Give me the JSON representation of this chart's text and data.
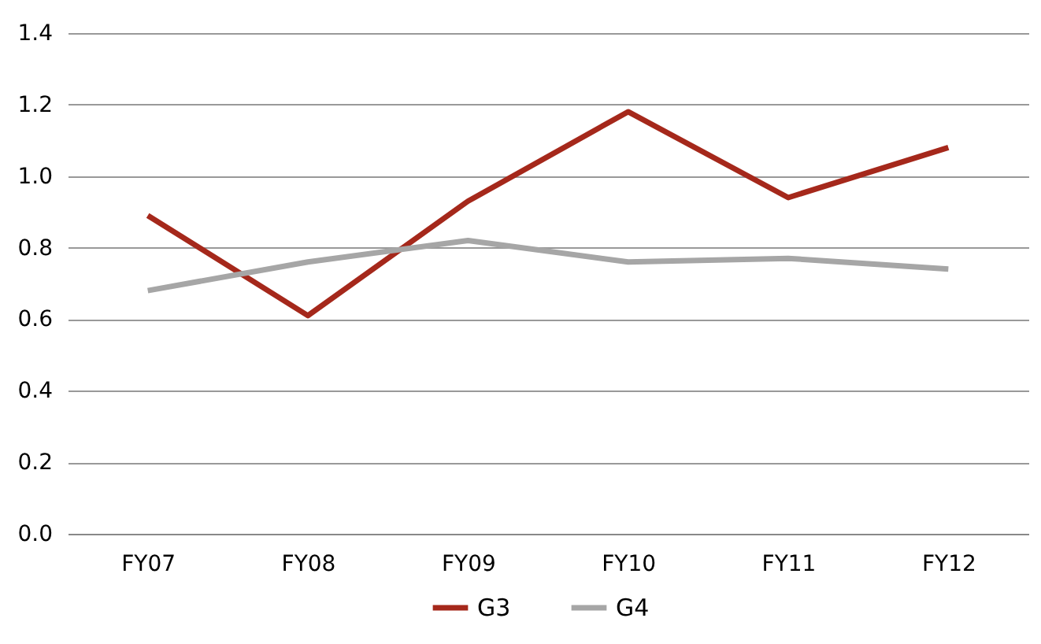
{
  "chart_data": {
    "type": "line",
    "categories": [
      "FY07",
      "FY08",
      "FY09",
      "FY10",
      "FY11",
      "FY12"
    ],
    "series": [
      {
        "name": "G3",
        "color": "#a5281b",
        "values": [
          0.89,
          0.61,
          0.93,
          1.18,
          0.94,
          1.08
        ]
      },
      {
        "name": "G4",
        "color": "#a6a6a6",
        "values": [
          0.68,
          0.76,
          0.82,
          0.76,
          0.77,
          0.74
        ]
      }
    ],
    "ylim": [
      0,
      1.4
    ],
    "yticks": [
      {
        "value": 0,
        "label": "0.0"
      },
      {
        "value": 0.2,
        "label": "0.2"
      },
      {
        "value": 0.4,
        "label": "0.4"
      },
      {
        "value": 0.6,
        "label": "0.6"
      },
      {
        "value": 0.8,
        "label": "0.8"
      },
      {
        "value": 1.0,
        "label": "1.0"
      },
      {
        "value": 1.2,
        "label": "1.2"
      },
      {
        "value": 1.4,
        "label": "1.4"
      }
    ],
    "grid": "y",
    "legend": "bottom",
    "marker": "none",
    "line_style": "solid"
  }
}
